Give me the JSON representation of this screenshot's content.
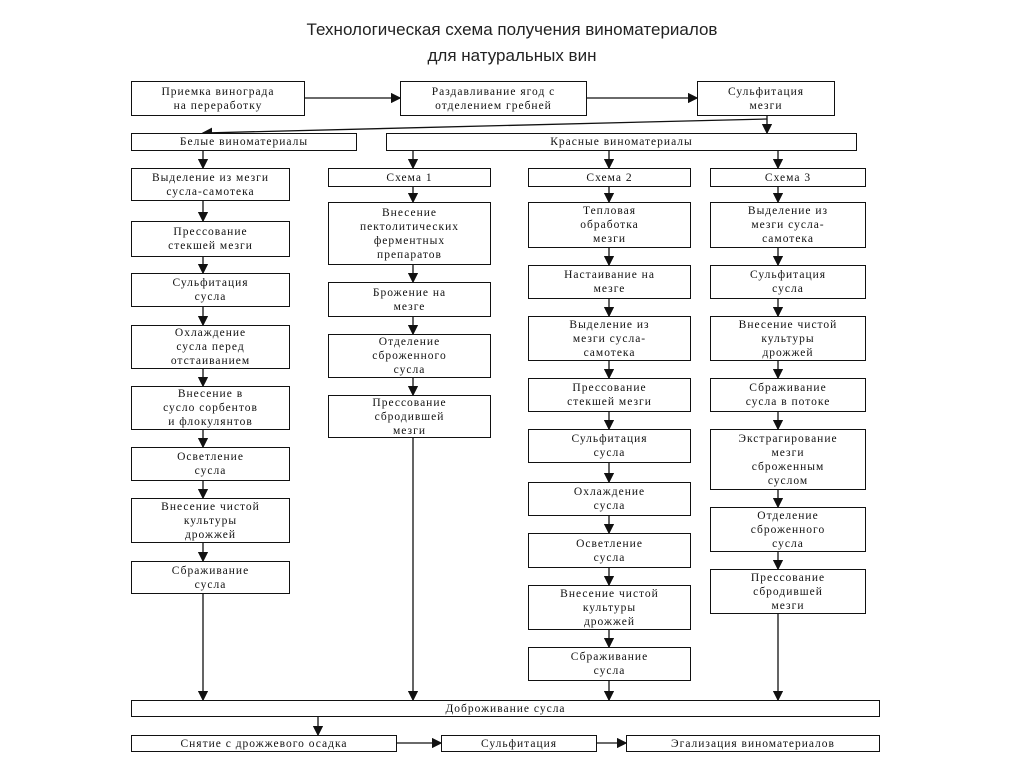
{
  "title": [
    "Технологическая схема получения виноматериалов",
    "для натуральных вин"
  ],
  "top_steps": [
    [
      "Приемка винограда",
      "на переработку"
    ],
    [
      "Раздавливание ягод с",
      "отделением гребней"
    ],
    [
      "Сульфитация",
      "мезги"
    ]
  ],
  "white": {
    "title": "Белые виноматериалы",
    "steps": [
      [
        "Выделение из мезги",
        "сусла-самотека"
      ],
      [
        "Прессование",
        "стекшей мезги"
      ],
      [
        "Сульфитация",
        "сусла"
      ],
      [
        "Охлаждение",
        "сусла перед",
        "отстаиванием"
      ],
      [
        "Внесение в",
        "сусло сорбентов",
        "и флокулянтов"
      ],
      [
        "Осветление",
        "сусла"
      ],
      [
        "Внесение чистой",
        "культуры",
        "дрожжей"
      ],
      [
        "Сбраживание",
        "сусла"
      ]
    ]
  },
  "red": {
    "title": "Красные виноматериалы",
    "schemes": [
      {
        "label": "Схема 1",
        "steps": [
          [
            "Внесение",
            "пектолитических",
            "ферментных",
            "препаратов"
          ],
          [
            "Брожение на",
            "мезге"
          ],
          [
            "Отделение",
            "сброженного",
            "сусла"
          ],
          [
            "Прессование",
            "сбродившей",
            "мезги"
          ]
        ]
      },
      {
        "label": "Схема 2",
        "steps": [
          [
            "Тепловая",
            "обработка",
            "мезги"
          ],
          [
            "Настаивание на",
            "мезге"
          ],
          [
            "Выделение из",
            "мезги сусла-",
            "самотека"
          ],
          [
            "Прессование",
            "стекшей мезги"
          ],
          [
            "Сульфитация",
            "сусла"
          ],
          [
            "Охлаждение",
            "сусла"
          ],
          [
            "Осветление",
            "сусла"
          ],
          [
            "Внесение чистой",
            "культуры",
            "дрожжей"
          ],
          [
            "Сбраживание",
            "сусла"
          ]
        ]
      },
      {
        "label": "Схема 3",
        "steps": [
          [
            "Выделение из",
            "мезги сусла-",
            "самотека"
          ],
          [
            "Сульфитация",
            "сусла"
          ],
          [
            "Внесение чистой",
            "культуры",
            "дрожжей"
          ],
          [
            "Сбраживание",
            "сусла в потоке"
          ],
          [
            "Экстрагирование",
            "мезги",
            "сброженным",
            "суслом"
          ],
          [
            "Отделение",
            "сброженного",
            "сусла"
          ],
          [
            "Прессование",
            "сбродившей",
            "мезги"
          ]
        ]
      }
    ]
  },
  "fermentation_finish": "Доброживание сусла",
  "final_steps": [
    "Снятие с дрожжевого осадка",
    "Сульфитация",
    "Эгализация виноматериалов"
  ]
}
